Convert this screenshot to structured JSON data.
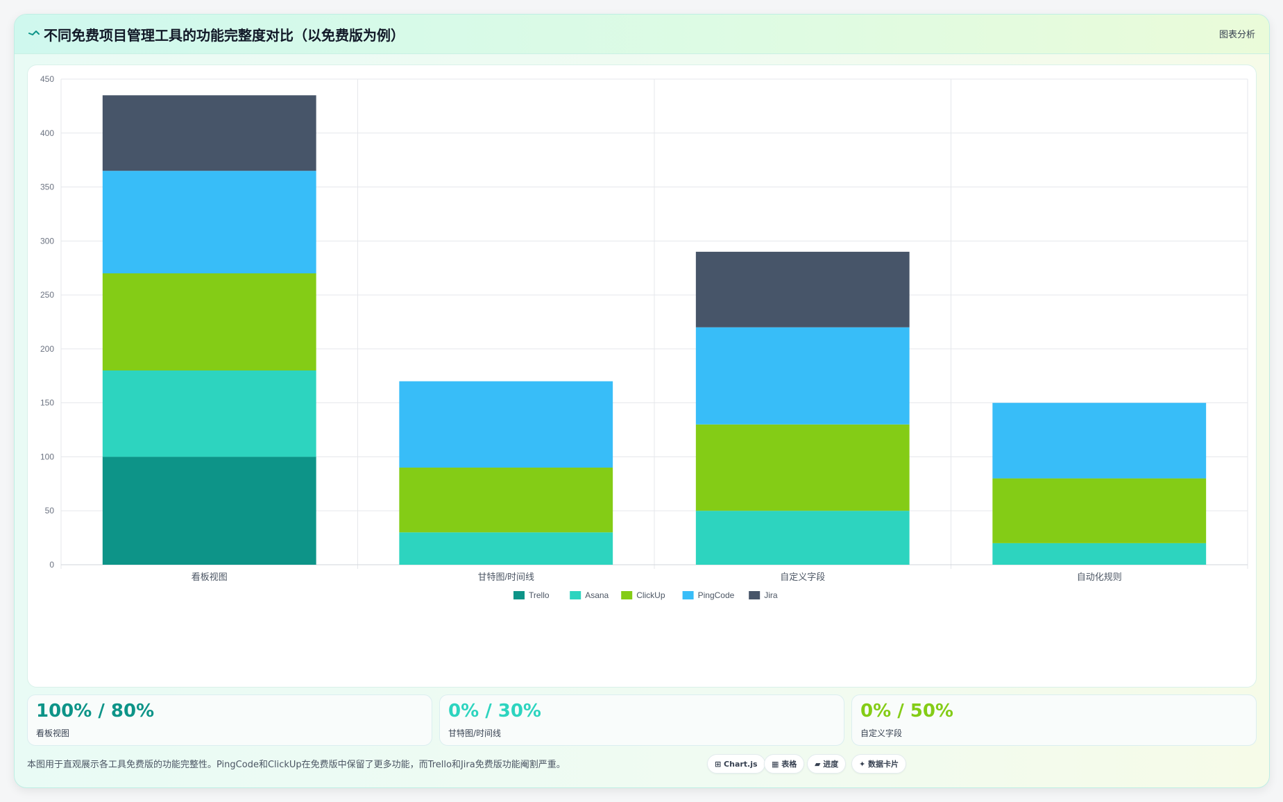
{
  "header": {
    "title": "不同免费项目管理工具的功能完整度对比（以免费版为例）",
    "action_label": "图表分析",
    "logo_icon": "sparkline-icon"
  },
  "chart_data": {
    "type": "bar",
    "stacked": true,
    "categories": [
      "看板视图",
      "甘特图/时间线",
      "自定义字段",
      "自动化规则"
    ],
    "series": [
      {
        "name": "Trello",
        "color": "#0d9488",
        "values": [
          100,
          0,
          0,
          0
        ]
      },
      {
        "name": "Asana",
        "color": "#2dd4bf",
        "values": [
          80,
          30,
          50,
          20
        ]
      },
      {
        "name": "ClickUp",
        "color": "#84cc16",
        "values": [
          90,
          60,
          80,
          60
        ]
      },
      {
        "name": "PingCode",
        "color": "#38bdf8",
        "values": [
          95,
          80,
          90,
          70
        ]
      },
      {
        "name": "Jira",
        "color": "#475569",
        "values": [
          70,
          0,
          70,
          0
        ]
      }
    ],
    "title": "",
    "xlabel": "",
    "ylabel": "",
    "ylim": [
      0,
      450
    ],
    "y_ticks": [
      "0",
      "50",
      "100",
      "150",
      "200",
      "250",
      "300",
      "350",
      "400",
      "450"
    ],
    "grid": true,
    "legend_position": "bottom"
  },
  "stats": [
    {
      "value": "100% / 80%",
      "label": "看板视图",
      "color": "#0d9488"
    },
    {
      "value": "0% / 30%",
      "label": "甘特图/时间线",
      "color": "#2dd4bf"
    },
    {
      "value": "0% / 50%",
      "label": "自定义字段",
      "color": "#84cc16"
    }
  ],
  "footer": {
    "note": "本图用于直观展示各工具免费版的功能完整性。PingCode和ClickUp在免费版中保留了更多功能，而Trello和Jira免费版功能阉割严重。"
  },
  "chips": [
    {
      "label": "⊞ Chart.js"
    },
    {
      "label": "▦ 表格"
    },
    {
      "label": "▰ 进度"
    },
    {
      "label": "✦ 数据卡片"
    }
  ]
}
